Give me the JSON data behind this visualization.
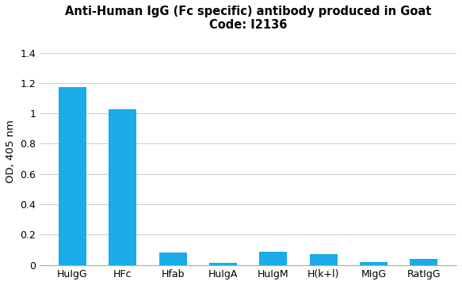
{
  "title_line1": "Anti-Human IgG (Fc specific) antibody produced in Goat",
  "title_line2": "Code: I2136",
  "categories": [
    "HuIgG",
    "HFc",
    "Hfab",
    "HuIgA",
    "HuIgM",
    "H(k+l)",
    "MIgG",
    "RatIgG"
  ],
  "values": [
    1.175,
    1.025,
    0.08,
    0.015,
    0.085,
    0.07,
    0.02,
    0.038
  ],
  "bar_color": "#1aace8",
  "ylabel": "OD, 405 nm",
  "ylim": [
    0,
    1.5
  ],
  "yticks": [
    0,
    0.2,
    0.4,
    0.6,
    0.8,
    1.0,
    1.2,
    1.4
  ],
  "ytick_labels": [
    "0",
    "0.2",
    "0.4",
    "0.6",
    "0.8",
    "1",
    "1.2",
    "1.4"
  ],
  "background_color": "#ffffff",
  "grid_color": "#d0d0d0",
  "title_fontsize": 10.5,
  "axis_label_fontsize": 9.5,
  "tick_fontsize": 9
}
